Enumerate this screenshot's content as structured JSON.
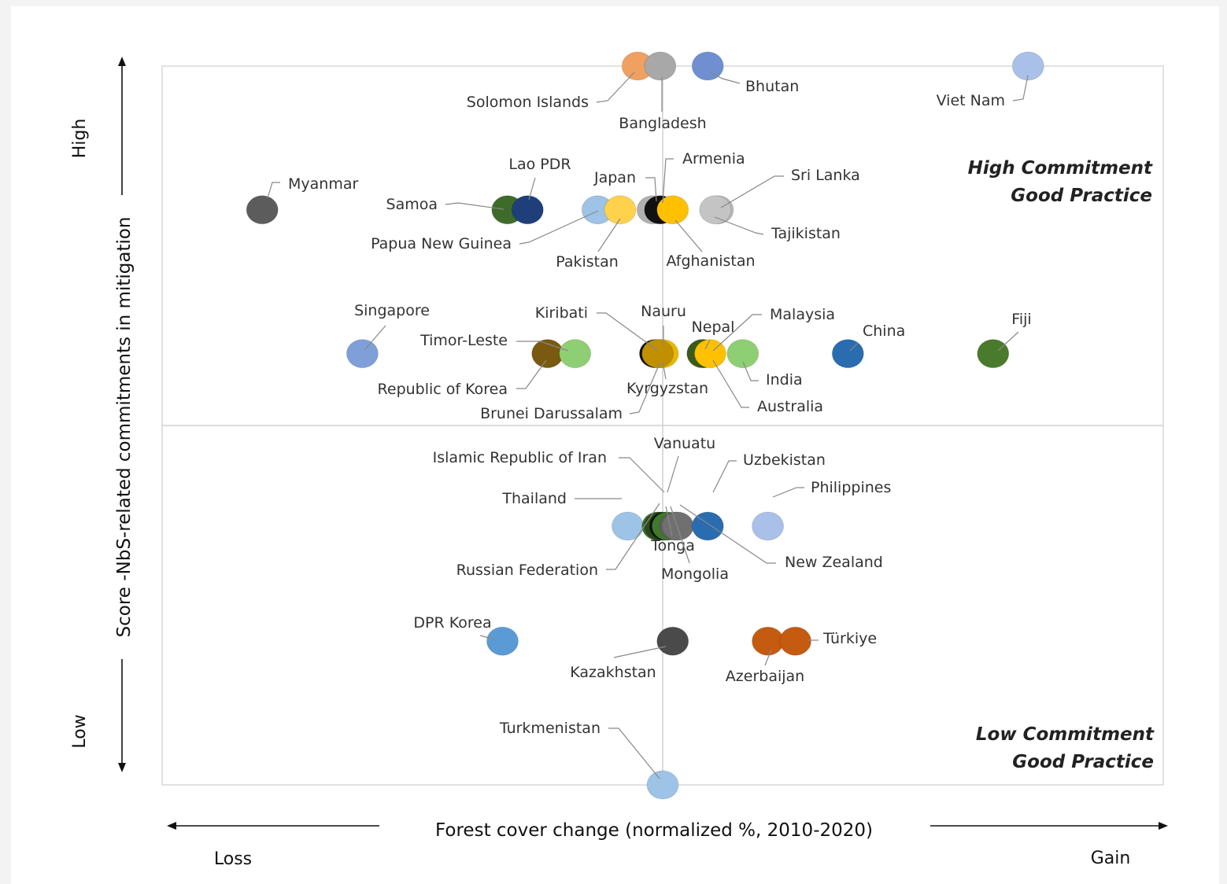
{
  "chart_data": {
    "type": "scatter",
    "xlabel": "Forest cover change (normalized %, 2010-2020)",
    "ylabel": "Score -NbS-related commitments in mitigation",
    "x_low_label": "Loss",
    "x_high_label": "Gain",
    "y_low_label": "Low",
    "y_high_label": "High",
    "quadrants": {
      "top_right": [
        "High Commitment",
        "Good Practice"
      ],
      "bottom_right": [
        "Low Commitment",
        "Good Practice"
      ]
    },
    "xlim": [
      -1,
      1
    ],
    "ylim": [
      0,
      5
    ],
    "grid": false,
    "points": [
      {
        "label": "Solomon Islands",
        "x": -0.05,
        "y": 5,
        "color": "#f0a060"
      },
      {
        "label": "Bangladesh",
        "x": -0.005,
        "y": 5,
        "color": "#a8a8a8"
      },
      {
        "label": "Bhutan",
        "x": 0.09,
        "y": 5,
        "color": "#6f8fd0"
      },
      {
        "label": "Viet Nam",
        "x": 0.73,
        "y": 5,
        "color": "#a9c0e8"
      },
      {
        "label": "Myanmar",
        "x": -0.8,
        "y": 4,
        "color": "#5c5c5c"
      },
      {
        "label": "Samoa",
        "x": -0.31,
        "y": 4,
        "color": "#3f6b2a"
      },
      {
        "label": "Lao PDR",
        "x": -0.27,
        "y": 4,
        "color": "#1f3f7a"
      },
      {
        "label": "Papua New Guinea",
        "x": -0.13,
        "y": 4,
        "color": "#9dc3e6"
      },
      {
        "label": "Pakistan",
        "x": -0.085,
        "y": 4,
        "color": "#ffd24d"
      },
      {
        "label": "Japan",
        "x": -0.02,
        "y": 4,
        "color": "#b0b0b0"
      },
      {
        "label": "Armenia",
        "x": -0.005,
        "y": 4,
        "color": "#111111"
      },
      {
        "label": "Afghanistan",
        "x": 0.02,
        "y": 4,
        "color": "#ffc000"
      },
      {
        "label": "Sri Lanka",
        "x": 0.11,
        "y": 4,
        "color": "#b8b8b8"
      },
      {
        "label": "Tajikistan",
        "x": 0.105,
        "y": 4,
        "color": "#c4c4c4"
      },
      {
        "label": "Singapore",
        "x": -0.6,
        "y": 3,
        "color": "#7f9fd8"
      },
      {
        "label": "Republic of Korea",
        "x": -0.23,
        "y": 3,
        "color": "#7a5a10"
      },
      {
        "label": "Timor-Leste",
        "x": -0.175,
        "y": 3,
        "color": "#8fcf73"
      },
      {
        "label": "Kiribati",
        "x": -0.015,
        "y": 3,
        "color": "#111111"
      },
      {
        "label": "Nauru",
        "x": -0.005,
        "y": 3,
        "color": "#ffc000"
      },
      {
        "label": "Kyrgyzstan",
        "x": 0.0,
        "y": 3,
        "color": "#e8b800"
      },
      {
        "label": "Brunei Darussalam",
        "x": -0.01,
        "y": 3,
        "color": "#c09000"
      },
      {
        "label": "Nepal",
        "x": 0.08,
        "y": 3,
        "color": "#8a3b12"
      },
      {
        "label": "Malaysia",
        "x": 0.08,
        "y": 3,
        "color": "#3a5a1a"
      },
      {
        "label": "Australia",
        "x": 0.095,
        "y": 3,
        "color": "#ffc000"
      },
      {
        "label": "India",
        "x": 0.16,
        "y": 3,
        "color": "#8fcf73"
      },
      {
        "label": "China",
        "x": 0.37,
        "y": 3,
        "color": "#2a6cb0"
      },
      {
        "label": "Fiji",
        "x": 0.66,
        "y": 3,
        "color": "#4a7a2c"
      },
      {
        "label": "Thailand",
        "x": -0.07,
        "y": 1.8,
        "color": "#9dc3e6"
      },
      {
        "label": "Islamic Republic of Iran",
        "x": -0.01,
        "y": 1.8,
        "color": "#3f6b2a"
      },
      {
        "label": "Russian Federation",
        "x": -0.005,
        "y": 1.8,
        "color": "#2a4a1a"
      },
      {
        "label": "Vanuatu",
        "x": 0.005,
        "y": 1.8,
        "color": "#111111"
      },
      {
        "label": "Tonga",
        "x": 0.01,
        "y": 1.8,
        "color": "#3f7a2a"
      },
      {
        "label": "Mongolia",
        "x": 0.025,
        "y": 1.8,
        "color": "#606060"
      },
      {
        "label": "New Zealand",
        "x": 0.03,
        "y": 1.8,
        "color": "#707070"
      },
      {
        "label": "Uzbekistan",
        "x": 0.09,
        "y": 1.8,
        "color": "#2a6cb0"
      },
      {
        "label": "Philippines",
        "x": 0.21,
        "y": 1.8,
        "color": "#a9c0e8"
      },
      {
        "label": "DPR Korea",
        "x": -0.32,
        "y": 1.0,
        "color": "#5b9bd5"
      },
      {
        "label": "Kazakhstan",
        "x": 0.02,
        "y": 1.0,
        "color": "#4a4a4a"
      },
      {
        "label": "Azerbaijan",
        "x": 0.21,
        "y": 1.0,
        "color": "#c55a11"
      },
      {
        "label": "Türkiye",
        "x": 0.265,
        "y": 1.0,
        "color": "#c55a11"
      },
      {
        "label": "Turkmenistan",
        "x": 0.0,
        "y": 0,
        "color": "#9dc3e6"
      }
    ]
  }
}
